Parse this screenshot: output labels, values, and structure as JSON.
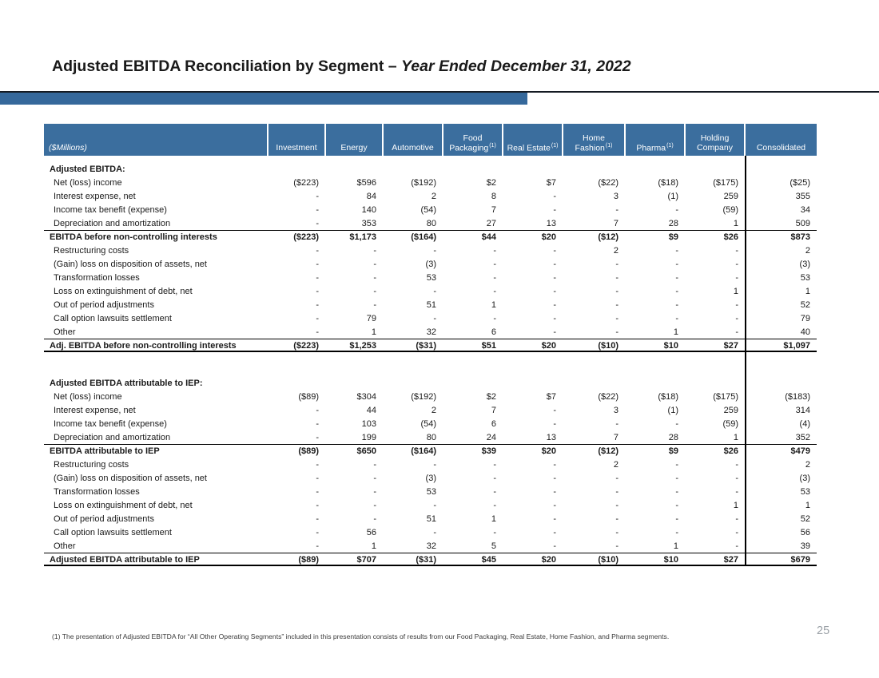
{
  "slide": {
    "title_main": "Adjusted EBITDA Reconciliation by Segment – ",
    "title_period": "Year Ended December 31, 2022",
    "accent_color": "#35689B",
    "header_color": "#3B6E9E",
    "footnote": "(1) The presentation of Adjusted EBITDA for “All Other Operating Segments” included in this presentation consists of results from our Food Packaging, Real Estate, Home Fashion, and Pharma segments.",
    "page_number": "25"
  },
  "table": {
    "unit_label": "($Millions)",
    "columns": [
      {
        "label": "Investment",
        "footnote_marker": ""
      },
      {
        "label": "Energy",
        "footnote_marker": ""
      },
      {
        "label": "Automotive",
        "footnote_marker": ""
      },
      {
        "label": "Food Packaging",
        "footnote_marker": "(1)"
      },
      {
        "label": "Real Estate",
        "footnote_marker": "(1)"
      },
      {
        "label": "Home Fashion",
        "footnote_marker": "(1)"
      },
      {
        "label": "Pharma",
        "footnote_marker": "(1)"
      },
      {
        "label": "Holding Company",
        "footnote_marker": ""
      },
      {
        "label": "Consolidated",
        "footnote_marker": ""
      }
    ],
    "sections": [
      {
        "heading": "Adjusted EBITDA:",
        "rows": [
          {
            "label": "Net (loss) income",
            "style": "item",
            "values": [
              "($223)",
              "$596",
              "($192)",
              "$2",
              "$7",
              "($22)",
              "($18)",
              "($175)",
              "($25)"
            ]
          },
          {
            "label": "Interest expense, net",
            "style": "item",
            "values": [
              "-",
              "84",
              "2",
              "8",
              "-",
              "3",
              "(1)",
              "259",
              "355"
            ]
          },
          {
            "label": "Income tax benefit (expense)",
            "style": "item",
            "values": [
              "-",
              "140",
              "(54)",
              "7",
              "-",
              "-",
              "-",
              "(59)",
              "34"
            ]
          },
          {
            "label": "Depreciation and amortization",
            "style": "item",
            "values": [
              "-",
              "353",
              "80",
              "27",
              "13",
              "7",
              "28",
              "1",
              "509"
            ]
          },
          {
            "label": "EBITDA before non-controlling interests",
            "style": "subtotal",
            "values": [
              "($223)",
              "$1,173",
              "($164)",
              "$44",
              "$20",
              "($12)",
              "$9",
              "$26",
              "$873"
            ]
          },
          {
            "label": "Restructuring costs",
            "style": "item",
            "values": [
              "-",
              "-",
              "-",
              "-",
              "-",
              "2",
              "-",
              "-",
              "2"
            ]
          },
          {
            "label": "(Gain) loss on disposition of assets, net",
            "style": "item",
            "values": [
              "-",
              "-",
              "(3)",
              "-",
              "-",
              "-",
              "-",
              "-",
              "(3)"
            ]
          },
          {
            "label": "Transformation losses",
            "style": "item",
            "values": [
              "-",
              "-",
              "53",
              "-",
              "-",
              "-",
              "-",
              "-",
              "53"
            ]
          },
          {
            "label": "Loss on extinguishment of debt, net",
            "style": "item",
            "values": [
              "-",
              "-",
              "-",
              "-",
              "-",
              "-",
              "-",
              "1",
              "1"
            ]
          },
          {
            "label": "Out of period adjustments",
            "style": "item",
            "values": [
              "-",
              "-",
              "51",
              "1",
              "-",
              "-",
              "-",
              "-",
              "52"
            ]
          },
          {
            "label": "Call option lawsuits settlement",
            "style": "item",
            "values": [
              "-",
              "79",
              "-",
              "-",
              "-",
              "-",
              "-",
              "-",
              "79"
            ]
          },
          {
            "label": "Other",
            "style": "item",
            "values": [
              "-",
              "1",
              "32",
              "6",
              "-",
              "-",
              "1",
              "-",
              "40"
            ]
          },
          {
            "label": "Adj. EBITDA before non-controlling interests",
            "style": "total",
            "values": [
              "($223)",
              "$1,253",
              "($31)",
              "$51",
              "$20",
              "($10)",
              "$10",
              "$27",
              "$1,097"
            ]
          }
        ]
      },
      {
        "heading": "Adjusted EBITDA attributable to IEP:",
        "rows": [
          {
            "label": "Net (loss) income",
            "style": "item",
            "values": [
              "($89)",
              "$304",
              "($192)",
              "$2",
              "$7",
              "($22)",
              "($18)",
              "($175)",
              "($183)"
            ]
          },
          {
            "label": "Interest expense, net",
            "style": "item",
            "values": [
              "-",
              "44",
              "2",
              "7",
              "-",
              "3",
              "(1)",
              "259",
              "314"
            ]
          },
          {
            "label": "Income tax benefit (expense)",
            "style": "item",
            "values": [
              "-",
              "103",
              "(54)",
              "6",
              "-",
              "-",
              "-",
              "(59)",
              "(4)"
            ]
          },
          {
            "label": "Depreciation and amortization",
            "style": "item",
            "values": [
              "-",
              "199",
              "80",
              "24",
              "13",
              "7",
              "28",
              "1",
              "352"
            ]
          },
          {
            "label": "EBITDA attributable to IEP",
            "style": "subtotal",
            "values": [
              "($89)",
              "$650",
              "($164)",
              "$39",
              "$20",
              "($12)",
              "$9",
              "$26",
              "$479"
            ]
          },
          {
            "label": "Restructuring costs",
            "style": "item",
            "values": [
              "-",
              "-",
              "-",
              "-",
              "-",
              "2",
              "-",
              "-",
              "2"
            ]
          },
          {
            "label": "(Gain) loss on disposition of assets, net",
            "style": "item",
            "values": [
              "-",
              "-",
              "(3)",
              "-",
              "-",
              "-",
              "-",
              "-",
              "(3)"
            ]
          },
          {
            "label": "Transformation losses",
            "style": "item",
            "values": [
              "-",
              "-",
              "53",
              "-",
              "-",
              "-",
              "-",
              "-",
              "53"
            ]
          },
          {
            "label": "Loss on extinguishment of debt, net",
            "style": "item",
            "values": [
              "-",
              "-",
              "-",
              "-",
              "-",
              "-",
              "-",
              "1",
              "1"
            ]
          },
          {
            "label": "Out of period adjustments",
            "style": "item",
            "values": [
              "-",
              "-",
              "51",
              "1",
              "-",
              "-",
              "-",
              "-",
              "52"
            ]
          },
          {
            "label": "Call option lawsuits settlement",
            "style": "item",
            "values": [
              "-",
              "56",
              "-",
              "-",
              "-",
              "-",
              "-",
              "-",
              "56"
            ]
          },
          {
            "label": "Other",
            "style": "item",
            "values": [
              "-",
              "1",
              "32",
              "5",
              "-",
              "-",
              "1",
              "-",
              "39"
            ]
          },
          {
            "label": "Adjusted EBITDA attributable to IEP",
            "style": "total",
            "values": [
              "($89)",
              "$707",
              "($31)",
              "$45",
              "$20",
              "($10)",
              "$10",
              "$27",
              "$679"
            ]
          }
        ]
      }
    ]
  }
}
